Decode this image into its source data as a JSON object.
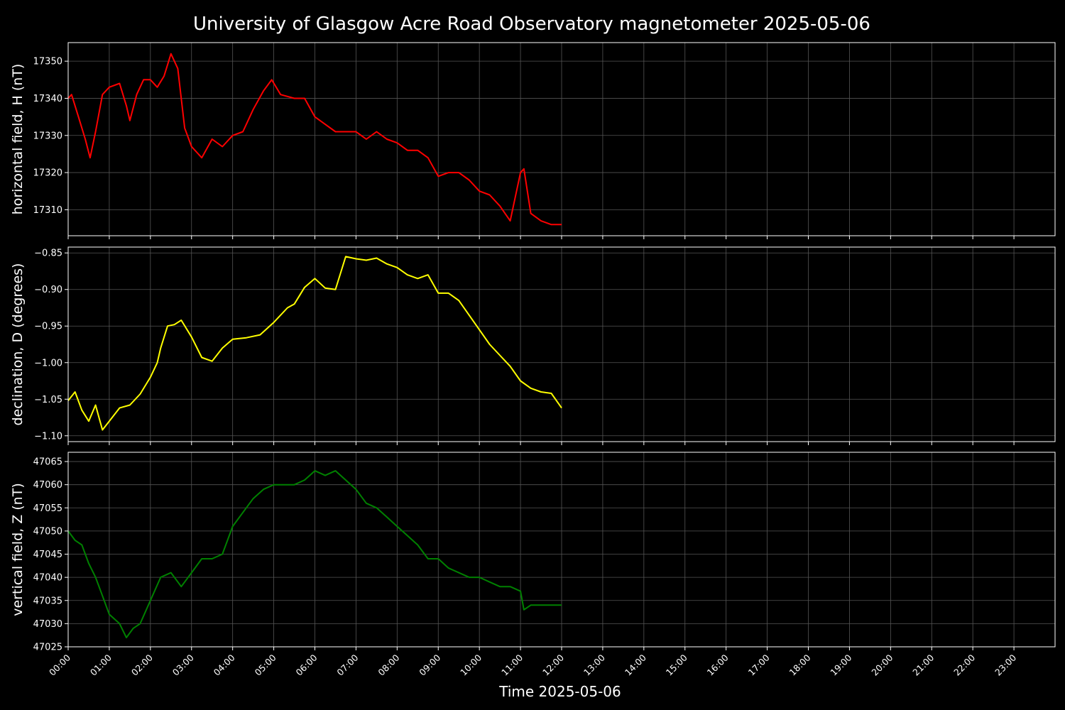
{
  "chart_data": {
    "type": "line",
    "title": "University of Glasgow Acre Road Observatory magnetometer 2025-05-06",
    "xlabel": "Time 2025-05-06",
    "x_ticks": [
      "00:00",
      "01:00",
      "02:00",
      "03:00",
      "04:00",
      "05:00",
      "06:00",
      "07:00",
      "08:00",
      "09:00",
      "10:00",
      "11:00",
      "12:00",
      "13:00",
      "14:00",
      "15:00",
      "16:00",
      "17:00",
      "18:00",
      "19:00",
      "20:00",
      "21:00",
      "22:00",
      "23:00"
    ],
    "xlim": [
      "00:00",
      "24:00"
    ],
    "grid": true,
    "colors": {
      "background": "#000000",
      "H": "#ff0000",
      "D": "#ffff00",
      "Z": "#008000"
    },
    "panels": [
      {
        "key": "H",
        "ylabel": "horizontal field, H (nT)",
        "ylim": [
          17303,
          17355
        ],
        "yticks": [
          17310,
          17320,
          17330,
          17340,
          17350
        ],
        "ytick_labels": [
          "17310",
          "17320",
          "17330",
          "17340",
          "17350"
        ],
        "series": [
          {
            "color": "#ff0000",
            "x": [
              "00:00",
              "00:05",
              "00:15",
              "00:25",
              "00:32",
              "00:40",
              "00:50",
              "01:00",
              "01:15",
              "01:25",
              "01:30",
              "01:40",
              "01:50",
              "02:00",
              "02:10",
              "02:20",
              "02:30",
              "02:40",
              "02:50",
              "03:00",
              "03:15",
              "03:30",
              "03:45",
              "04:00",
              "04:15",
              "04:30",
              "04:45",
              "04:57",
              "05:10",
              "05:30",
              "05:45",
              "06:00",
              "06:15",
              "06:30",
              "06:45",
              "07:00",
              "07:15",
              "07:30",
              "07:45",
              "08:00",
              "08:15",
              "08:30",
              "08:45",
              "09:00",
              "09:15",
              "09:30",
              "09:45",
              "10:00",
              "10:15",
              "10:30",
              "10:45",
              "11:00",
              "11:05",
              "11:15",
              "11:30",
              "11:45",
              "12:00"
            ],
            "values": [
              17340,
              17341,
              17335,
              17329,
              17324,
              17331,
              17341,
              17343,
              17344,
              17338,
              17334,
              17341,
              17345,
              17345,
              17343,
              17346,
              17352,
              17348,
              17332,
              17327,
              17324,
              17329,
              17327,
              17330,
              17331,
              17337,
              17342,
              17345,
              17341,
              17340,
              17340,
              17335,
              17333,
              17331,
              17331,
              17331,
              17329,
              17331,
              17329,
              17328,
              17326,
              17326,
              17324,
              17319,
              17320,
              17320,
              17318,
              17315,
              17314,
              17311,
              17307,
              17320,
              17321,
              17309,
              17307,
              17306,
              17306
            ]
          }
        ]
      },
      {
        "key": "D",
        "ylabel": "declination, D (degrees)",
        "ylim": [
          -1.108,
          -0.842
        ],
        "yticks": [
          -1.1,
          -1.05,
          -1.0,
          -0.95,
          -0.9,
          -0.85
        ],
        "ytick_labels": [
          "−1.10",
          "−1.05",
          "−1.00",
          "−0.95",
          "−0.90",
          "−0.85"
        ],
        "series": [
          {
            "color": "#ffff00",
            "x": [
              "00:00",
              "00:10",
              "00:20",
              "00:30",
              "00:40",
              "00:45",
              "00:50",
              "01:00",
              "01:15",
              "01:30",
              "01:45",
              "02:00",
              "02:10",
              "02:15",
              "02:25",
              "02:35",
              "02:45",
              "03:00",
              "03:15",
              "03:30",
              "03:45",
              "04:00",
              "04:20",
              "04:40",
              "05:00",
              "05:20",
              "05:30",
              "05:45",
              "06:00",
              "06:15",
              "06:30",
              "06:45",
              "07:00",
              "07:15",
              "07:30",
              "07:45",
              "08:00",
              "08:15",
              "08:30",
              "08:45",
              "09:00",
              "09:15",
              "09:30",
              "09:45",
              "10:00",
              "10:15",
              "10:30",
              "10:45",
              "11:00",
              "11:15",
              "11:30",
              "11:45",
              "12:00"
            ],
            "values": [
              -1.052,
              -1.04,
              -1.065,
              -1.08,
              -1.058,
              -1.075,
              -1.092,
              -1.08,
              -1.062,
              -1.058,
              -1.043,
              -1.02,
              -1.0,
              -0.98,
              -0.95,
              -0.948,
              -0.942,
              -0.965,
              -0.993,
              -0.998,
              -0.98,
              -0.968,
              -0.966,
              -0.962,
              -0.945,
              -0.925,
              -0.92,
              -0.897,
              -0.885,
              -0.898,
              -0.9,
              -0.855,
              -0.858,
              -0.86,
              -0.857,
              -0.865,
              -0.87,
              -0.88,
              -0.885,
              -0.88,
              -0.905,
              -0.905,
              -0.915,
              -0.935,
              -0.955,
              -0.975,
              -0.99,
              -1.005,
              -1.025,
              -1.035,
              -1.04,
              -1.042,
              -1.062
            ]
          }
        ]
      },
      {
        "key": "Z",
        "ylabel": "vertical field, Z (nT)",
        "ylim": [
          47025,
          47067
        ],
        "yticks": [
          47025,
          47030,
          47035,
          47040,
          47045,
          47050,
          47055,
          47060,
          47065
        ],
        "ytick_labels": [
          "47025",
          "47030",
          "47035",
          "47040",
          "47045",
          "47050",
          "47055",
          "47060",
          "47065"
        ],
        "series": [
          {
            "color": "#008000",
            "x": [
              "00:00",
              "00:10",
              "00:20",
              "00:30",
              "00:40",
              "00:50",
              "01:00",
              "01:15",
              "01:25",
              "01:35",
              "01:45",
              "02:00",
              "02:15",
              "02:30",
              "02:45",
              "03:00",
              "03:15",
              "03:30",
              "03:45",
              "04:00",
              "04:15",
              "04:30",
              "04:45",
              "05:00",
              "05:15",
              "05:30",
              "05:45",
              "06:00",
              "06:15",
              "06:30",
              "06:45",
              "07:00",
              "07:15",
              "07:30",
              "07:45",
              "08:00",
              "08:15",
              "08:30",
              "08:45",
              "09:00",
              "09:15",
              "09:30",
              "09:45",
              "10:00",
              "10:15",
              "10:30",
              "10:45",
              "11:00",
              "11:05",
              "11:15",
              "11:30",
              "11:45",
              "12:00"
            ],
            "values": [
              47050,
              47048,
              47047,
              47043,
              47040,
              47036,
              47032,
              47030,
              47027,
              47029,
              47030,
              47035,
              47040,
              47041,
              47038,
              47041,
              47044,
              47044,
              47045,
              47051,
              47054,
              47057,
              47059,
              47060,
              47060,
              47060,
              47061,
              47063,
              47062,
              47063,
              47061,
              47059,
              47056,
              47055,
              47053,
              47051,
              47049,
              47047,
              47044,
              47044,
              47042,
              47041,
              47040,
              47040,
              47039,
              47038,
              47038,
              47037,
              47033,
              47034,
              47034,
              47034,
              47034
            ]
          }
        ]
      }
    ]
  }
}
